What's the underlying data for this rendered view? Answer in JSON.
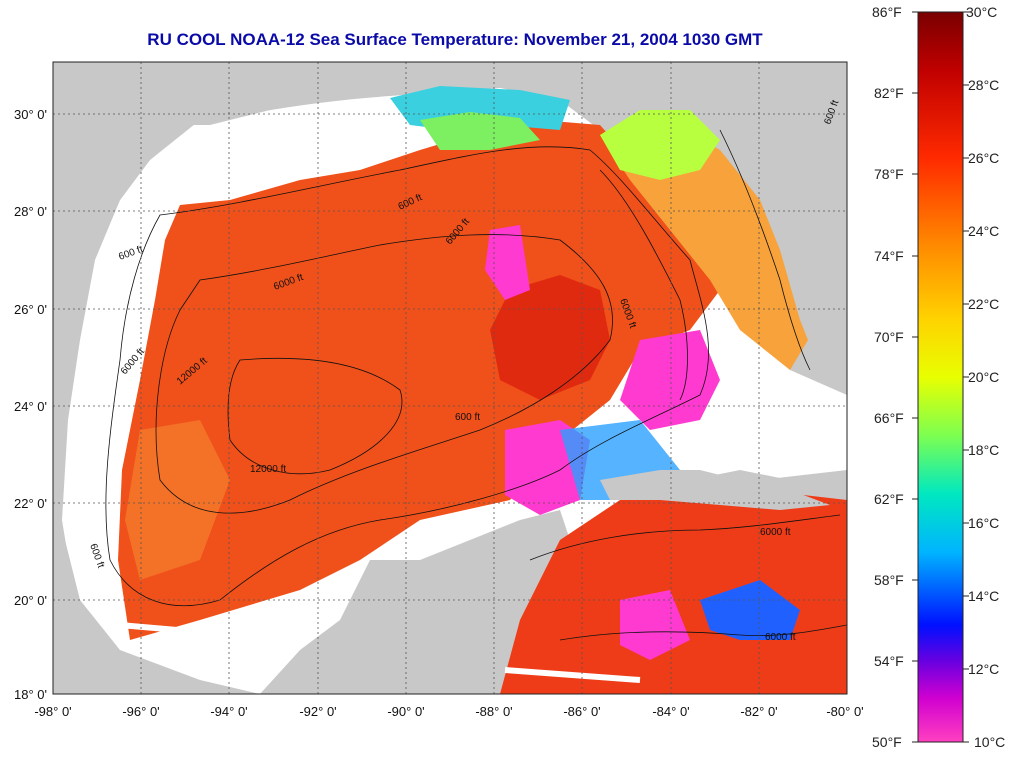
{
  "title": "RU COOL  NOAA-12  Sea Surface Temperature:  November 21, 2004 1030 GMT",
  "map": {
    "lon_range": [
      -98,
      -80
    ],
    "lat_range": [
      18,
      31
    ],
    "x_ticks": [
      "-98° 0'",
      "-96° 0'",
      "-94° 0'",
      "-92° 0'",
      "-90° 0'",
      "-88° 0'",
      "-86° 0'",
      "-84° 0'",
      "-82° 0'",
      "-80° 0'"
    ],
    "y_ticks": [
      "30° 0'",
      "28° 0'",
      "26° 0'",
      "24° 0'",
      "22° 0'",
      "20° 0'",
      "18° 0'"
    ],
    "contour_labels": [
      "600 ft",
      "6000 ft",
      "600 ft",
      "6000 ft",
      "12000 ft",
      "6000 ft",
      "12000 ft",
      "600 ft",
      "6000 ft",
      "600 ft",
      "6000 ft",
      "600 ft",
      "6000 ft"
    ],
    "colors": {
      "land": "#c8c8c8",
      "cloud": "#ffffff",
      "warm": "#f0501a",
      "hot": "#e02a10"
    }
  },
  "colorbar": {
    "fahrenheit": [
      "86°F",
      "82°F",
      "78°F",
      "74°F",
      "70°F",
      "66°F",
      "62°F",
      "58°F",
      "54°F",
      "50°F"
    ],
    "celsius": [
      "30°C",
      "28°C",
      "26°C",
      "24°C",
      "22°C",
      "20°C",
      "18°C",
      "16°C",
      "14°C",
      "12°C",
      "10°C"
    ],
    "range_c": [
      10,
      30
    ],
    "range_f": [
      50,
      86
    ]
  }
}
